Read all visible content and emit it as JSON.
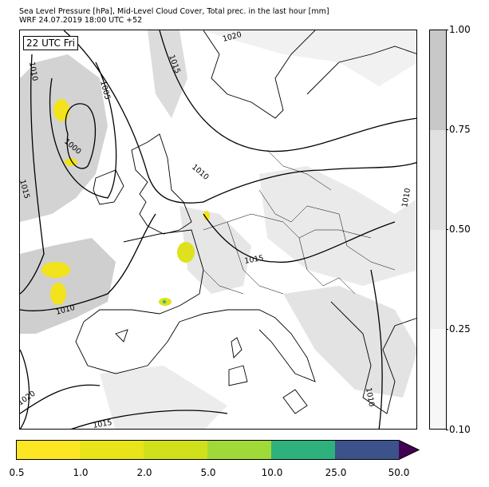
{
  "header": {
    "line1": "Sea Level Pressure [hPa], Mid-Level Cloud Cover, Total prec. in the last hour [mm]",
    "line2": "WRF 24.07.2019 18:00 UTC +52"
  },
  "map": {
    "time_label": "22 UTC Fri",
    "isobar_labels": [
      "1020",
      "1015",
      "1010",
      "1005",
      "1000",
      "1010",
      "1015",
      "1010",
      "1015",
      "1010",
      "1010",
      "1020",
      "1015",
      "1010"
    ]
  },
  "cloud_cover_colorbar": {
    "ticks": [
      "1.00",
      "0.75",
      "0.50",
      "0.25",
      "0.10"
    ],
    "colors": [
      "#c8c8c8",
      "#e1e1e1",
      "#ededed",
      "#f7f7f7"
    ]
  },
  "precip_colorbar": {
    "ticks": [
      "0.5",
      "1.0",
      "2.0",
      "5.0",
      "10.0",
      "25.0",
      "50.0"
    ],
    "colors": [
      "#fde725",
      "#e8e419",
      "#d0e11c",
      "#a0da39",
      "#2db27d",
      "#3b528b",
      "#440154"
    ]
  }
}
